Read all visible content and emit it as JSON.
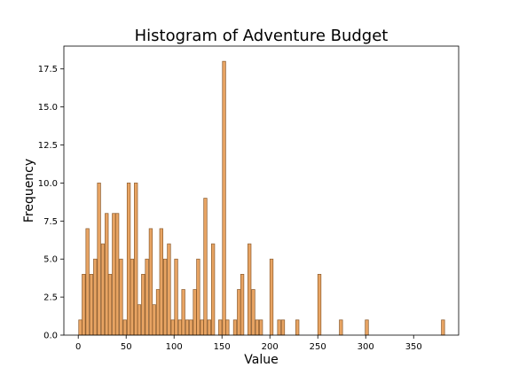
{
  "chart_data": {
    "type": "bar",
    "title": "Histogram of Adventure Budget",
    "xlabel": "Value",
    "ylabel": "Frequency",
    "xlim": [
      -15,
      397
    ],
    "ylim": [
      0,
      19
    ],
    "bin_width": 3.33,
    "bar_color": "#e8a463",
    "edge_color": "#8b5a2b",
    "grid": false,
    "x_ticks": [
      0,
      50,
      100,
      150,
      200,
      250,
      300,
      350
    ],
    "x_tick_labels": [
      "0",
      "50",
      "100",
      "150",
      "200",
      "250",
      "300",
      "350"
    ],
    "y_ticks": [
      0,
      2.5,
      5,
      7.5,
      10,
      12.5,
      15,
      17.5
    ],
    "y_tick_labels": [
      "0.0",
      "2.5",
      "5.0",
      "7.5",
      "10.0",
      "12.5",
      "15.0",
      "17.5"
    ],
    "bins": [
      {
        "x": 0.5,
        "count": 1
      },
      {
        "x": 4.0,
        "count": 4
      },
      {
        "x": 8.0,
        "count": 7
      },
      {
        "x": 12.0,
        "count": 4
      },
      {
        "x": 16.0,
        "count": 5
      },
      {
        "x": 20.0,
        "count": 10
      },
      {
        "x": 24.0,
        "count": 6
      },
      {
        "x": 28.0,
        "count": 8
      },
      {
        "x": 31.5,
        "count": 4
      },
      {
        "x": 35.5,
        "count": 8
      },
      {
        "x": 39.0,
        "count": 8
      },
      {
        "x": 43.0,
        "count": 5
      },
      {
        "x": 47.0,
        "count": 1
      },
      {
        "x": 51.0,
        "count": 10
      },
      {
        "x": 54.5,
        "count": 5
      },
      {
        "x": 58.5,
        "count": 10
      },
      {
        "x": 62.0,
        "count": 2
      },
      {
        "x": 66.0,
        "count": 4
      },
      {
        "x": 70.0,
        "count": 5
      },
      {
        "x": 74.0,
        "count": 7
      },
      {
        "x": 77.5,
        "count": 2
      },
      {
        "x": 81.5,
        "count": 3
      },
      {
        "x": 85.0,
        "count": 7
      },
      {
        "x": 89.0,
        "count": 5
      },
      {
        "x": 93.0,
        "count": 6
      },
      {
        "x": 97.0,
        "count": 1
      },
      {
        "x": 100.5,
        "count": 5
      },
      {
        "x": 104.5,
        "count": 1
      },
      {
        "x": 108.0,
        "count": 3
      },
      {
        "x": 112.0,
        "count": 1
      },
      {
        "x": 116.0,
        "count": 1
      },
      {
        "x": 120.0,
        "count": 3
      },
      {
        "x": 123.5,
        "count": 5
      },
      {
        "x": 127.5,
        "count": 1
      },
      {
        "x": 131.0,
        "count": 9
      },
      {
        "x": 135.0,
        "count": 1
      },
      {
        "x": 139.0,
        "count": 6
      },
      {
        "x": 146.5,
        "count": 1
      },
      {
        "x": 150.5,
        "count": 18
      },
      {
        "x": 154.0,
        "count": 1
      },
      {
        "x": 162.0,
        "count": 1
      },
      {
        "x": 166.0,
        "count": 3
      },
      {
        "x": 169.5,
        "count": 4
      },
      {
        "x": 177.0,
        "count": 6
      },
      {
        "x": 181.0,
        "count": 3
      },
      {
        "x": 185.0,
        "count": 1
      },
      {
        "x": 189.0,
        "count": 1
      },
      {
        "x": 200.0,
        "count": 5
      },
      {
        "x": 208.0,
        "count": 1
      },
      {
        "x": 212.0,
        "count": 1
      },
      {
        "x": 227.0,
        "count": 1
      },
      {
        "x": 250.0,
        "count": 4
      },
      {
        "x": 272.5,
        "count": 1
      },
      {
        "x": 299.5,
        "count": 1
      },
      {
        "x": 379.0,
        "count": 1
      }
    ]
  }
}
